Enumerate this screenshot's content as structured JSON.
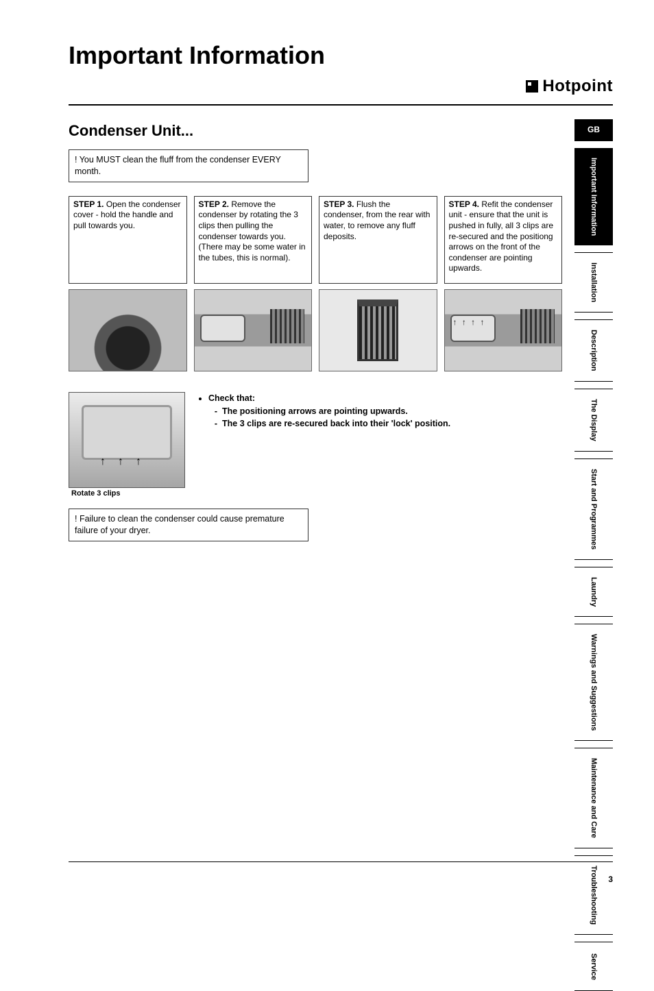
{
  "title": "Important Information",
  "brand": "Hotpoint",
  "subtitle": "Condenser Unit...",
  "warning_top": "! You MUST clean the fluff from the condenser EVERY month.",
  "steps": [
    {
      "title": "STEP 1.",
      "body": "Open the condenser cover - hold the handle and pull towards you."
    },
    {
      "title": "STEP 2.",
      "body": "Remove the condenser by rotating the 3 clips then pulling the condenser towards you.\n(There may be some water in the tubes, this is normal)."
    },
    {
      "title": "STEP 3.",
      "body": "Flush the condenser, from the rear with water, to remove any fluff deposits."
    },
    {
      "title": "STEP 4.",
      "body": "Refit the condenser unit - ensure that the unit is pushed in fully, all 3 clips are re-secured and the positiong arrows on the front of the condenser are pointing upwards."
    }
  ],
  "rotate_caption": "Rotate 3 clips",
  "check_heading": "Check that:",
  "check_items": [
    "The positioning arrows are pointing upwards.",
    "The 3 clips are re-secured back into their 'lock' position."
  ],
  "warning_bottom": "! Failure to clean the condenser could cause premature failure of your dryer.",
  "tabs": [
    {
      "label": "GB",
      "kind": "gb"
    },
    {
      "label": "Important Information",
      "kind": "active"
    },
    {
      "label": "Installation"
    },
    {
      "label": "Description"
    },
    {
      "label": "The Display"
    },
    {
      "label": "Start and Programmes"
    },
    {
      "label": "Laundry"
    },
    {
      "label": "Warnings and Suggestions"
    },
    {
      "label": "Maintenance and Care"
    },
    {
      "label": "Troubleshooting"
    },
    {
      "label": "Service"
    }
  ],
  "page_number": "3",
  "colors": {
    "text": "#000000",
    "bg": "#ffffff",
    "border": "#333333",
    "tab_active_bg": "#000000",
    "tab_active_fg": "#ffffff"
  }
}
